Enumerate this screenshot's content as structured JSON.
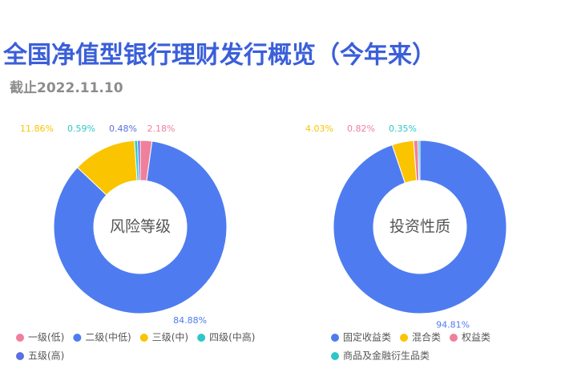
{
  "title": "全国净值型银行理财发行概览（今年来）",
  "subtitle": "截止2022.11.10",
  "chart_data": [
    {
      "type": "pie",
      "center_label": "风险等级",
      "categories": [
        "一级(低)",
        "二级(中低)",
        "三级(中)",
        "四级(中高)",
        "五级(高)"
      ],
      "values": [
        2.18,
        84.88,
        11.86,
        0.59,
        0.48
      ],
      "value_labels": [
        "2.18%",
        "84.88%",
        "11.86%",
        "0.59%",
        "0.48%"
      ],
      "colors": [
        "#f07f9c",
        "#4e7cf0",
        "#fac400",
        "#2ec7c9",
        "#5b6fe0"
      ]
    },
    {
      "type": "pie",
      "center_label": "投资性质",
      "categories": [
        "固定收益类",
        "混合类",
        "权益类",
        "商品及金融衍生品类"
      ],
      "values": [
        94.81,
        4.03,
        0.82,
        0.35
      ],
      "value_labels": [
        "94.81%",
        "4.03%",
        "0.82%",
        "0.35%"
      ],
      "colors": [
        "#4e7cf0",
        "#fac400",
        "#f07f9c",
        "#2ec7c9"
      ]
    }
  ]
}
